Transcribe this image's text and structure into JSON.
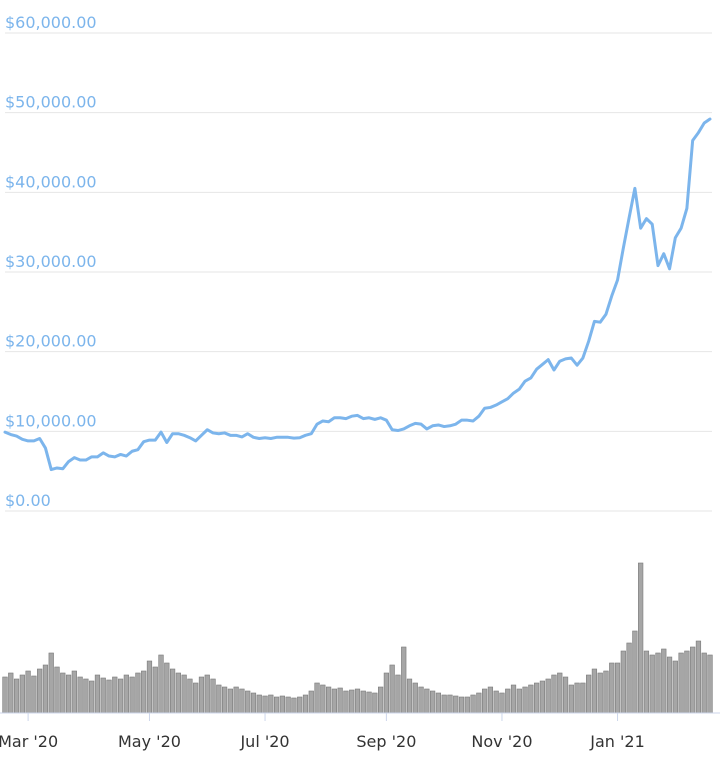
{
  "chart_data": {
    "type": "line",
    "categories": [
      null,
      null,
      null,
      null,
      "Mar '20",
      null,
      null,
      null,
      null,
      null,
      null,
      null,
      null,
      null,
      null,
      null,
      null,
      null,
      null,
      null,
      null,
      null,
      null,
      null,
      null,
      "May '20",
      null,
      null,
      null,
      null,
      null,
      null,
      null,
      null,
      null,
      null,
      null,
      null,
      null,
      null,
      null,
      null,
      null,
      null,
      null,
      "Jul '20",
      null,
      null,
      null,
      null,
      null,
      null,
      null,
      null,
      null,
      null,
      null,
      null,
      null,
      null,
      null,
      null,
      null,
      null,
      null,
      null,
      "Sep '20",
      null,
      null,
      null,
      null,
      null,
      null,
      null,
      null,
      null,
      null,
      null,
      null,
      null,
      null,
      null,
      null,
      null,
      null,
      null,
      "Nov '20",
      null,
      null,
      null,
      null,
      null,
      null,
      null,
      null,
      null,
      null,
      null,
      null,
      null,
      null,
      null,
      null,
      null,
      null,
      null,
      "Jan '21",
      null,
      null,
      null,
      null,
      null,
      null,
      null,
      null,
      null,
      null,
      null,
      null,
      null,
      null,
      null,
      null
    ],
    "values": [
      9900,
      9600,
      9400,
      9000,
      8800,
      8800,
      9100,
      7900,
      5200,
      5400,
      5300,
      6200,
      6700,
      6400,
      6400,
      6800,
      6800,
      7300,
      6900,
      6800,
      7100,
      6900,
      7500,
      7700,
      8700,
      8900,
      8900,
      9900,
      8600,
      9700,
      9700,
      9500,
      9200,
      8800,
      9500,
      10200,
      9800,
      9700,
      9800,
      9500,
      9500,
      9300,
      9700,
      9250,
      9100,
      9200,
      9100,
      9250,
      9250,
      9250,
      9150,
      9200,
      9500,
      9700,
      10900,
      11300,
      11200,
      11700,
      11700,
      11600,
      11900,
      12000,
      11600,
      11700,
      11500,
      11700,
      11400,
      10200,
      10100,
      10300,
      10700,
      11000,
      10900,
      10300,
      10700,
      10800,
      10600,
      10700,
      10900,
      11400,
      11400,
      11300,
      11900,
      12900,
      13000,
      13300,
      13700,
      14100,
      14800,
      15300,
      16300,
      16700,
      17800,
      18400,
      19000,
      17700,
      18800,
      19100,
      19200,
      18300,
      19200,
      21300,
      23800,
      23700,
      24700,
      27000,
      29000,
      33000,
      36800,
      40500,
      35500,
      36700,
      36000,
      30800,
      32300,
      30400,
      34300,
      35500,
      38000,
      46500,
      47500,
      48700,
      49200
    ],
    "color": "#7cb5ec",
    "ylim": [
      0,
      60000
    ],
    "yticks": [
      {
        "value": 0,
        "label": "$0.00"
      },
      {
        "value": 10000,
        "label": "$10,000.00"
      },
      {
        "value": 20000,
        "label": "$20,000.00"
      },
      {
        "value": 30000,
        "label": "$30,000.00"
      },
      {
        "value": 40000,
        "label": "$40,000.00"
      },
      {
        "value": 50000,
        "label": "$50,000.00"
      },
      {
        "value": 60000,
        "label": "$60,000.00"
      }
    ],
    "grid": true,
    "volume": {
      "type": "bar",
      "color": "#a6a6a6",
      "values": [
        36,
        40,
        34,
        38,
        42,
        37,
        44,
        48,
        60,
        46,
        40,
        38,
        42,
        36,
        34,
        32,
        38,
        35,
        33,
        36,
        34,
        38,
        36,
        40,
        42,
        52,
        46,
        58,
        50,
        44,
        40,
        38,
        34,
        30,
        36,
        38,
        34,
        28,
        26,
        24,
        26,
        24,
        22,
        20,
        18,
        17,
        18,
        16,
        17,
        16,
        15,
        16,
        18,
        22,
        30,
        28,
        26,
        24,
        25,
        22,
        23,
        24,
        22,
        21,
        20,
        26,
        40,
        48,
        38,
        66,
        34,
        30,
        26,
        24,
        22,
        20,
        18,
        18,
        17,
        16,
        16,
        18,
        20,
        24,
        26,
        22,
        20,
        24,
        28,
        24,
        26,
        28,
        30,
        32,
        34,
        38,
        40,
        36,
        28,
        30,
        30,
        38,
        44,
        40,
        42,
        50,
        50,
        62,
        70,
        82,
        150,
        62,
        58,
        60,
        64,
        56,
        52,
        60,
        62,
        66,
        72,
        60,
        58
      ]
    }
  }
}
